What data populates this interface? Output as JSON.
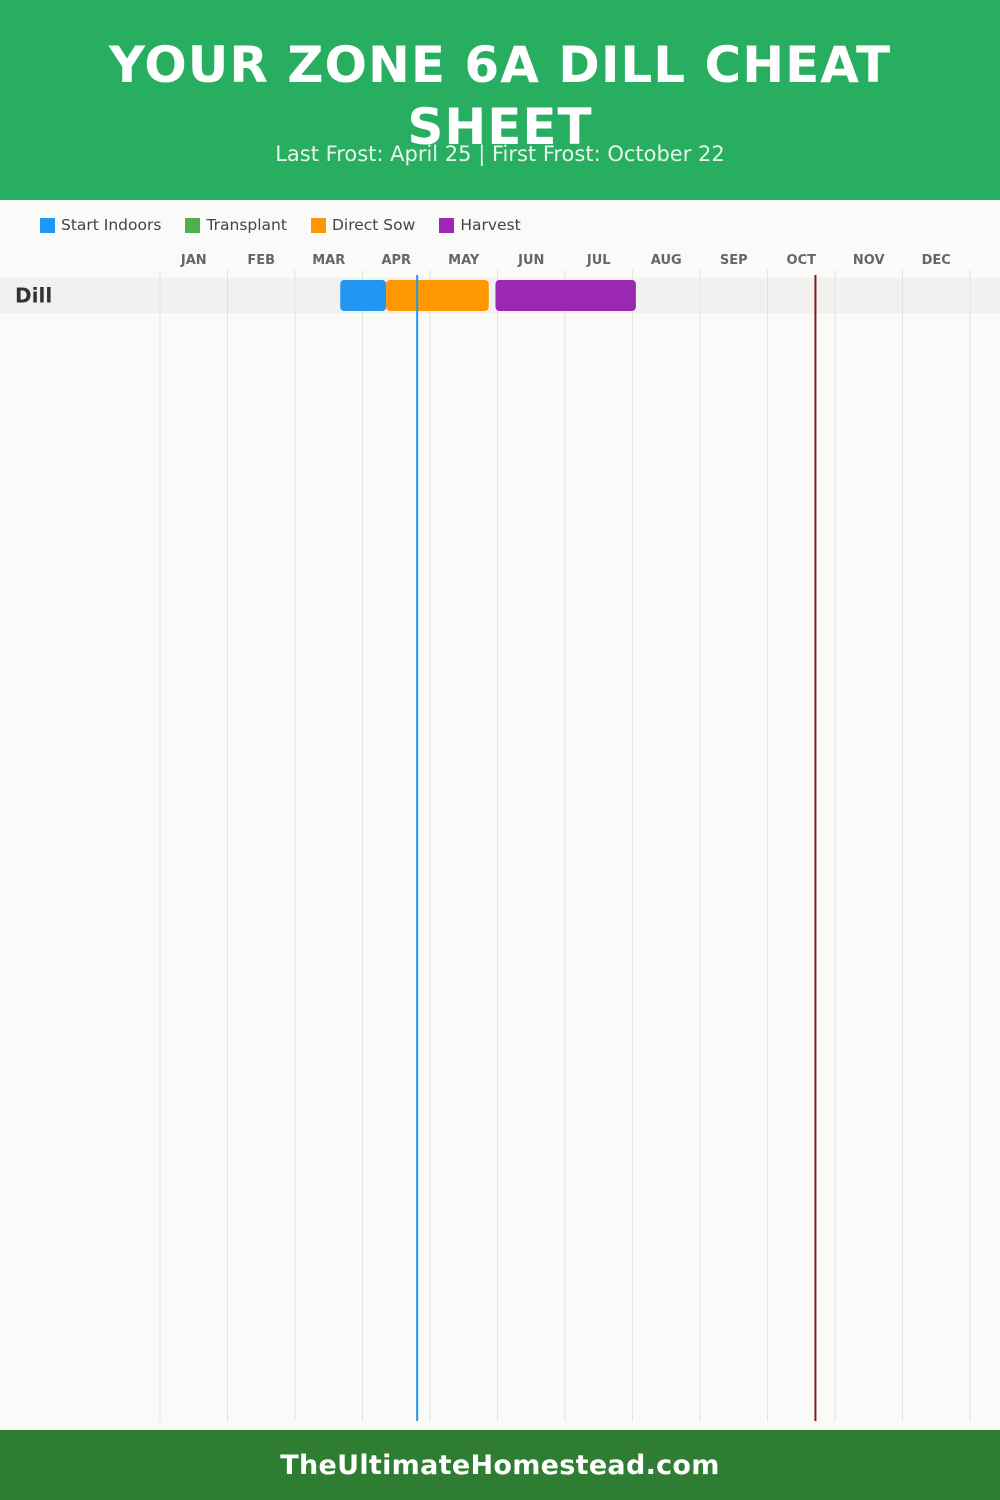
{
  "header": {
    "title": "YOUR ZONE 6A DILL CHEAT SHEET",
    "subtitle": "Last Frost: April 25 | First Frost: October 22"
  },
  "legend": [
    {
      "label": "Start Indoors",
      "color": "#2196f3"
    },
    {
      "label": "Transplant",
      "color": "#4caf50"
    },
    {
      "label": "Direct Sow",
      "color": "#ff9800"
    },
    {
      "label": "Harvest",
      "color": "#9c27b0"
    }
  ],
  "chart_data": {
    "type": "gantt-timeline",
    "months": [
      "JAN",
      "FEB",
      "MAR",
      "APR",
      "MAY",
      "JUN",
      "JUL",
      "AUG",
      "SEP",
      "OCT",
      "NOV",
      "DEC"
    ],
    "rows": [
      {
        "name": "Dill",
        "tasks": [
          {
            "task": "Start Indoors",
            "start_month": 3.67,
            "end_month": 4.35
          },
          {
            "task": "Direct Sow",
            "start_month": 4.35,
            "end_month": 5.87
          },
          {
            "task": "Harvest",
            "start_month": 5.97,
            "end_month": 8.05
          }
        ]
      }
    ],
    "markers": [
      {
        "label": "Last Frost",
        "month_position": 4.81,
        "color": "#2196f3"
      },
      {
        "label": "First Frost",
        "month_position": 10.71,
        "color": "#8b1a1a"
      }
    ],
    "grid": true
  },
  "footer": {
    "text": "TheUltimateHomestead.com"
  }
}
